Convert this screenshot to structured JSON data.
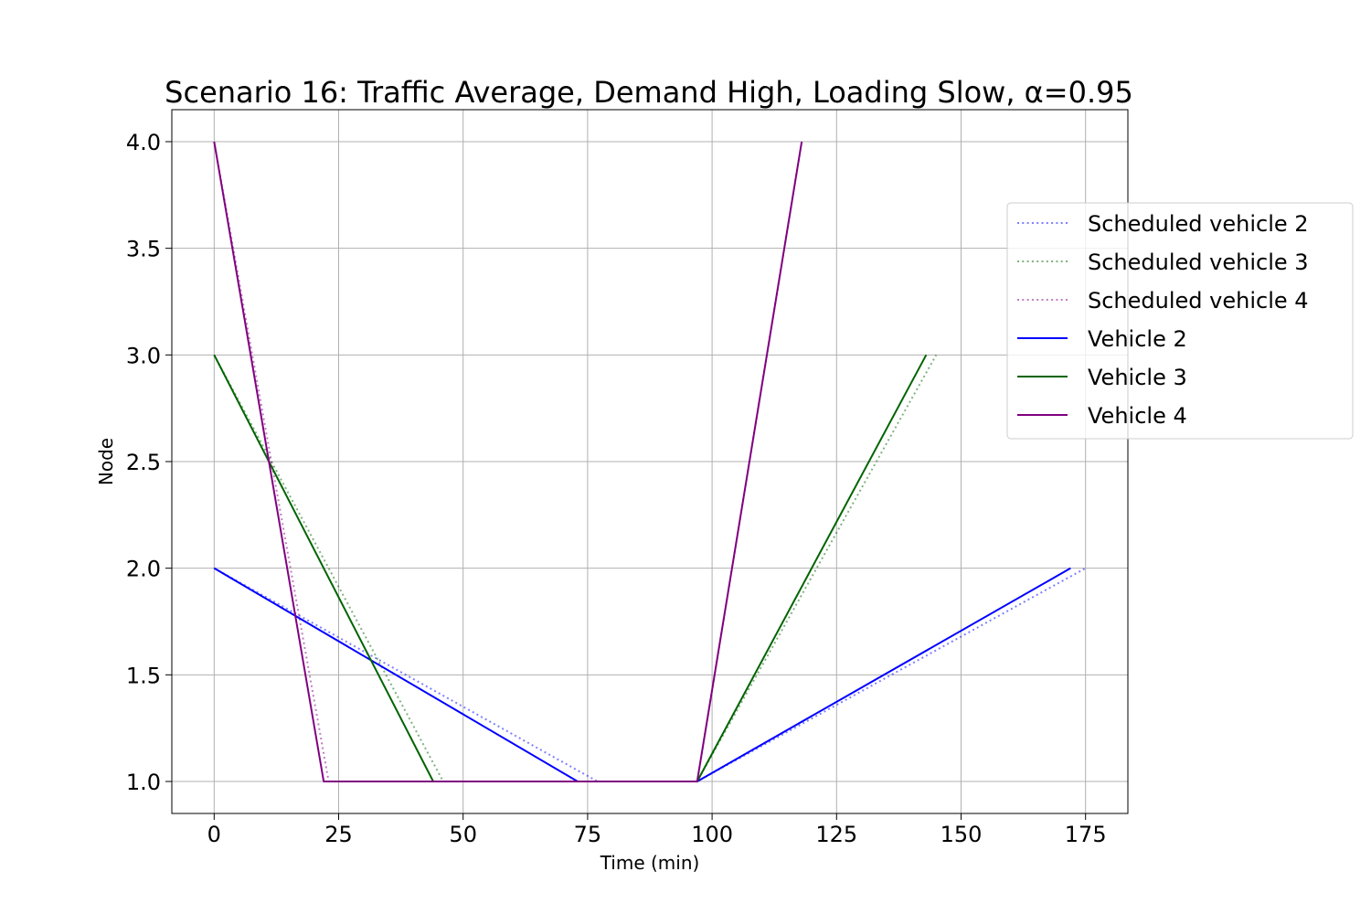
{
  "chart_data": {
    "type": "line",
    "title": "Scenario 16: Traffic Average, Demand High, Loading Slow, α=0.95",
    "xlabel": "Time (min)",
    "ylabel": "Node",
    "xlim": [
      -8.5,
      183.5
    ],
    "ylim": [
      0.85,
      4.15
    ],
    "xticks": [
      0,
      25,
      50,
      75,
      100,
      125,
      150,
      175
    ],
    "yticks": [
      1.0,
      1.5,
      2.0,
      2.5,
      3.0,
      3.5,
      4.0
    ],
    "xtick_labels": [
      "0",
      "25",
      "50",
      "75",
      "100",
      "125",
      "150",
      "175"
    ],
    "ytick_labels": [
      "1.0",
      "1.5",
      "2.0",
      "2.5",
      "3.0",
      "3.5",
      "4.0"
    ],
    "grid": true,
    "legend_position": "right",
    "series": [
      {
        "name": "Scheduled vehicle 2",
        "color": "#0000ff",
        "style": "dotted",
        "opacity": 0.5,
        "x": [
          0,
          77,
          97,
          175
        ],
        "y": [
          2,
          1,
          1,
          2
        ]
      },
      {
        "name": "Scheduled vehicle 3",
        "color": "#006400",
        "style": "dotted",
        "opacity": 0.5,
        "x": [
          0,
          46,
          97,
          145
        ],
        "y": [
          3,
          1,
          1,
          3
        ]
      },
      {
        "name": "Scheduled vehicle 4",
        "color": "#800080",
        "style": "dotted",
        "opacity": 0.5,
        "x": [
          0,
          23,
          97,
          118
        ],
        "y": [
          4,
          1,
          1,
          4
        ]
      },
      {
        "name": "Vehicle 2",
        "color": "#0000ff",
        "style": "solid",
        "opacity": 1,
        "x": [
          0,
          73,
          97,
          172
        ],
        "y": [
          2,
          1,
          1,
          2
        ]
      },
      {
        "name": "Vehicle 3",
        "color": "#006400",
        "style": "solid",
        "opacity": 1,
        "x": [
          0,
          44,
          97,
          143
        ],
        "y": [
          3,
          1,
          1,
          3
        ]
      },
      {
        "name": "Vehicle 4",
        "color": "#800080",
        "style": "solid",
        "opacity": 1,
        "x": [
          0,
          22,
          97,
          118
        ],
        "y": [
          4,
          1,
          1,
          4
        ]
      }
    ]
  }
}
